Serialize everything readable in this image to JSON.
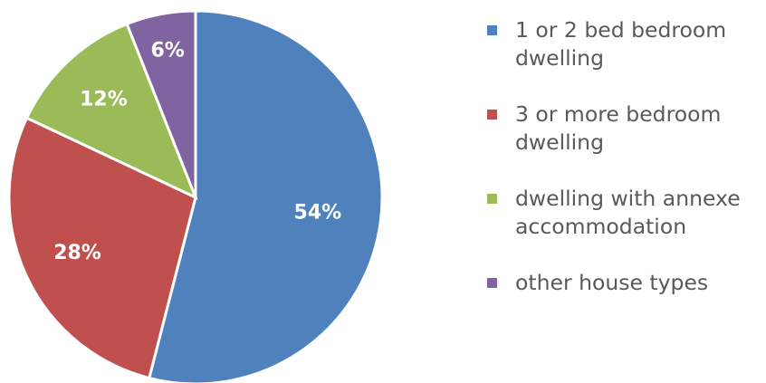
{
  "chart_data": {
    "type": "pie",
    "title": "",
    "start_angle_deg": 0,
    "direction": "clockwise",
    "legend_position": "right",
    "slices": [
      {
        "name": "1 or 2 bed bedroom dwelling",
        "value": 54,
        "label": "54%",
        "color": "#4F81BD"
      },
      {
        "name": "3 or more bedroom dwelling",
        "value": 28,
        "label": "28%",
        "color": "#C0504D"
      },
      {
        "name": "dwelling with annexe accommodation",
        "value": 12,
        "label": "12%",
        "color": "#9BBB59"
      },
      {
        "name": "other house types",
        "value": 6,
        "label": "6%",
        "color": "#8064A2"
      }
    ]
  }
}
